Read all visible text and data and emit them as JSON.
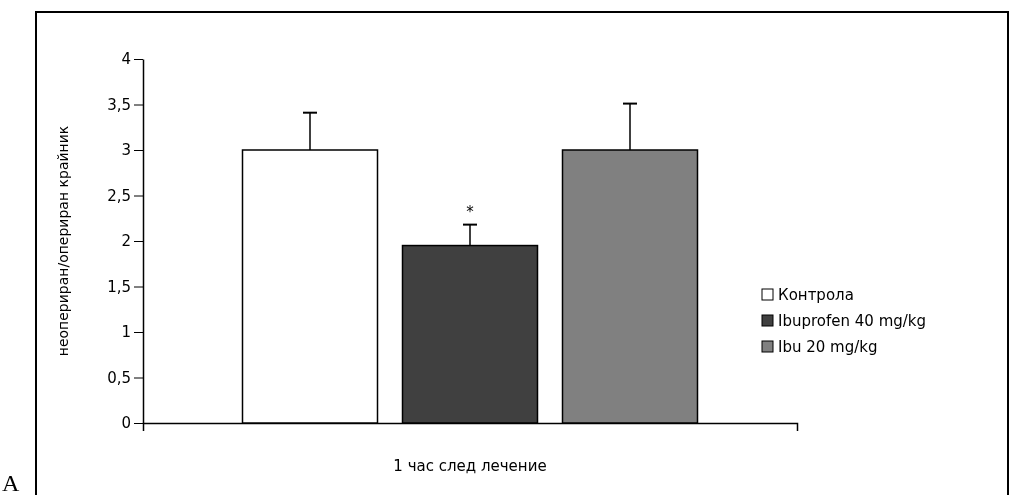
{
  "chart_data": {
    "type": "bar",
    "categories": [
      "1 час след лечение"
    ],
    "ylabel": "неопериран/опериран крайник",
    "ylim": [
      0,
      4
    ],
    "yticks": [
      0,
      {
        "value": 0.5,
        "label": "0,5"
      },
      1,
      {
        "value": 1.5,
        "label": "1,5"
      },
      2,
      {
        "value": 2.5,
        "label": "2,5"
      },
      3,
      {
        "value": 3.5,
        "label": "3,5"
      },
      4
    ],
    "series": [
      {
        "name": "Контрола",
        "color": "#ffffff",
        "values": [
          3
        ],
        "errors": [
          [
            3,
            3.41
          ]
        ]
      },
      {
        "name": "Ibuprofen 40 mg/kg",
        "color": "#404040",
        "values": [
          1.95
        ],
        "errors": [
          [
            1.95,
            2.18
          ]
        ]
      },
      {
        "name": "Ibu 20 mg/kg",
        "color": "#808080",
        "values": [
          3
        ],
        "errors": [
          [
            3,
            3.51
          ]
        ]
      }
    ],
    "annotations": [
      "*",
      "A"
    ],
    "legend": "right"
  }
}
